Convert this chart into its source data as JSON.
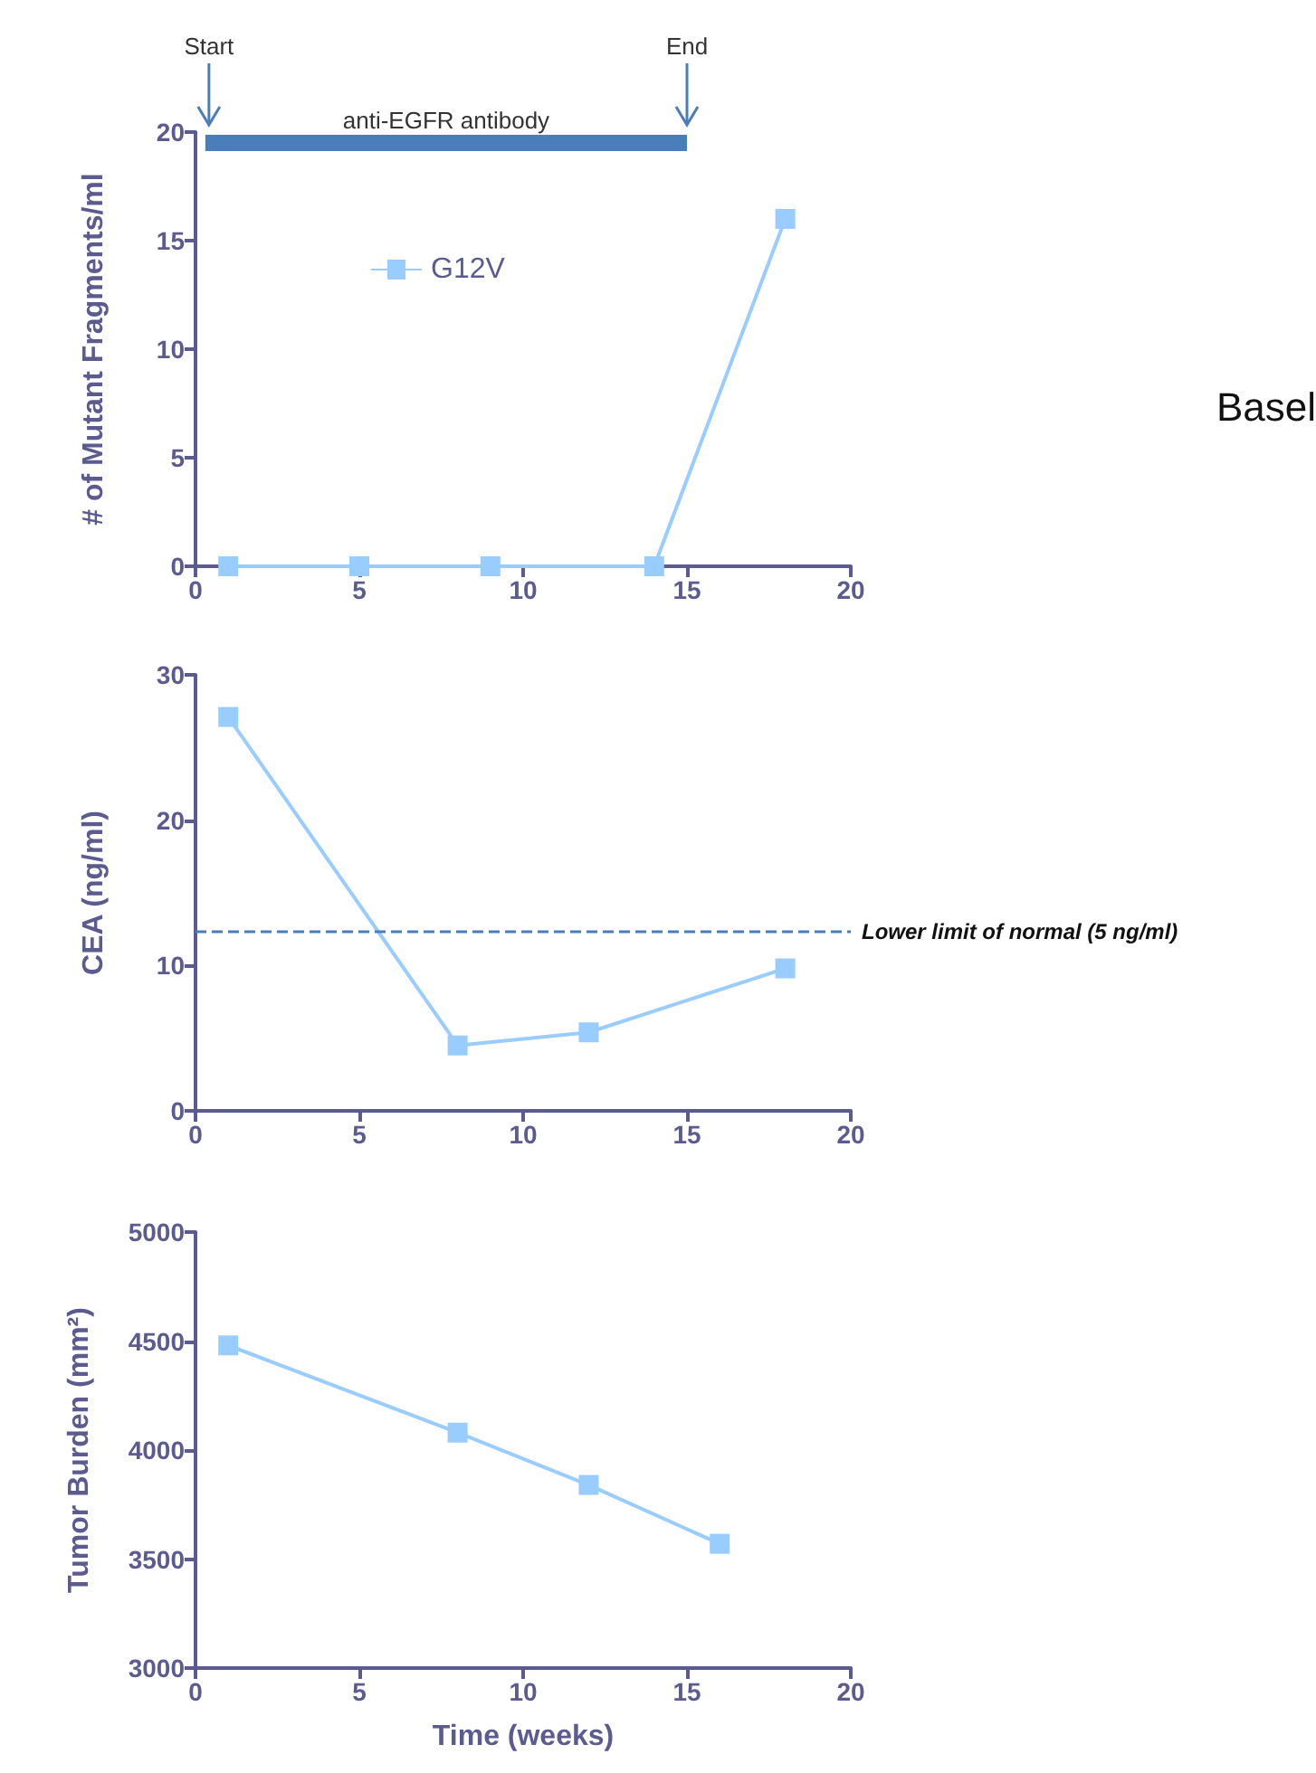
{
  "chart_data": [
    {
      "type": "line",
      "ylabel": "# of Mutant Fragments/ml",
      "marker": "square",
      "legend": "top left",
      "grid": false,
      "xlim": [
        0,
        20
      ],
      "xticks": [
        0,
        5,
        10,
        15,
        20
      ],
      "ylim": [
        0,
        20
      ],
      "yticks": [
        0,
        5,
        10,
        15,
        20
      ],
      "annotations": [
        "Start",
        "End",
        "Basel"
      ],
      "series": [
        {
          "name": "G12V",
          "color": "#99ccff",
          "x": [
            1,
            5,
            9,
            14,
            18
          ],
          "values": [
            0,
            0,
            0,
            0,
            16
          ]
        },
        {
          "name": "anti-EGFR antibody",
          "type": "line",
          "marker": "none",
          "color": "#4a7ebb",
          "x": [
            0.3,
            15
          ],
          "values": [
            19.5,
            19.5
          ]
        }
      ]
    },
    {
      "type": "line",
      "ylabel": "CEA (ng/ml)",
      "marker": "square",
      "grid": false,
      "xlim": [
        0,
        20
      ],
      "xticks": [
        0,
        5,
        10,
        15,
        20
      ],
      "ylim": [
        0,
        30
      ],
      "yticks": [
        0,
        10,
        20,
        30
      ],
      "ref_lines": [
        {
          "axis": "y",
          "value": 12.3,
          "label": "Lower limit of normal (5 ng/ml)",
          "color": "#4a7ebb",
          "line_style": "dashed"
        }
      ],
      "series": [
        {
          "color": "#99ccff",
          "x": [
            1,
            8,
            12,
            18
          ],
          "values": [
            27.1,
            4.5,
            5.4,
            9.8
          ]
        }
      ]
    },
    {
      "type": "line",
      "xlabel": "Time (weeks)",
      "ylabel": "Tumor Burden (mm²)",
      "marker": "square",
      "grid": false,
      "xlim": [
        0,
        20
      ],
      "xticks": [
        0,
        5,
        10,
        15,
        20
      ],
      "ylim": [
        3000,
        5000
      ],
      "yticks": [
        3000,
        3500,
        4000,
        4500,
        5000
      ],
      "series": [
        {
          "color": "#99ccff",
          "x": [
            1,
            8,
            12,
            16
          ],
          "values": [
            4480,
            4080,
            3840,
            3570
          ]
        }
      ]
    }
  ]
}
